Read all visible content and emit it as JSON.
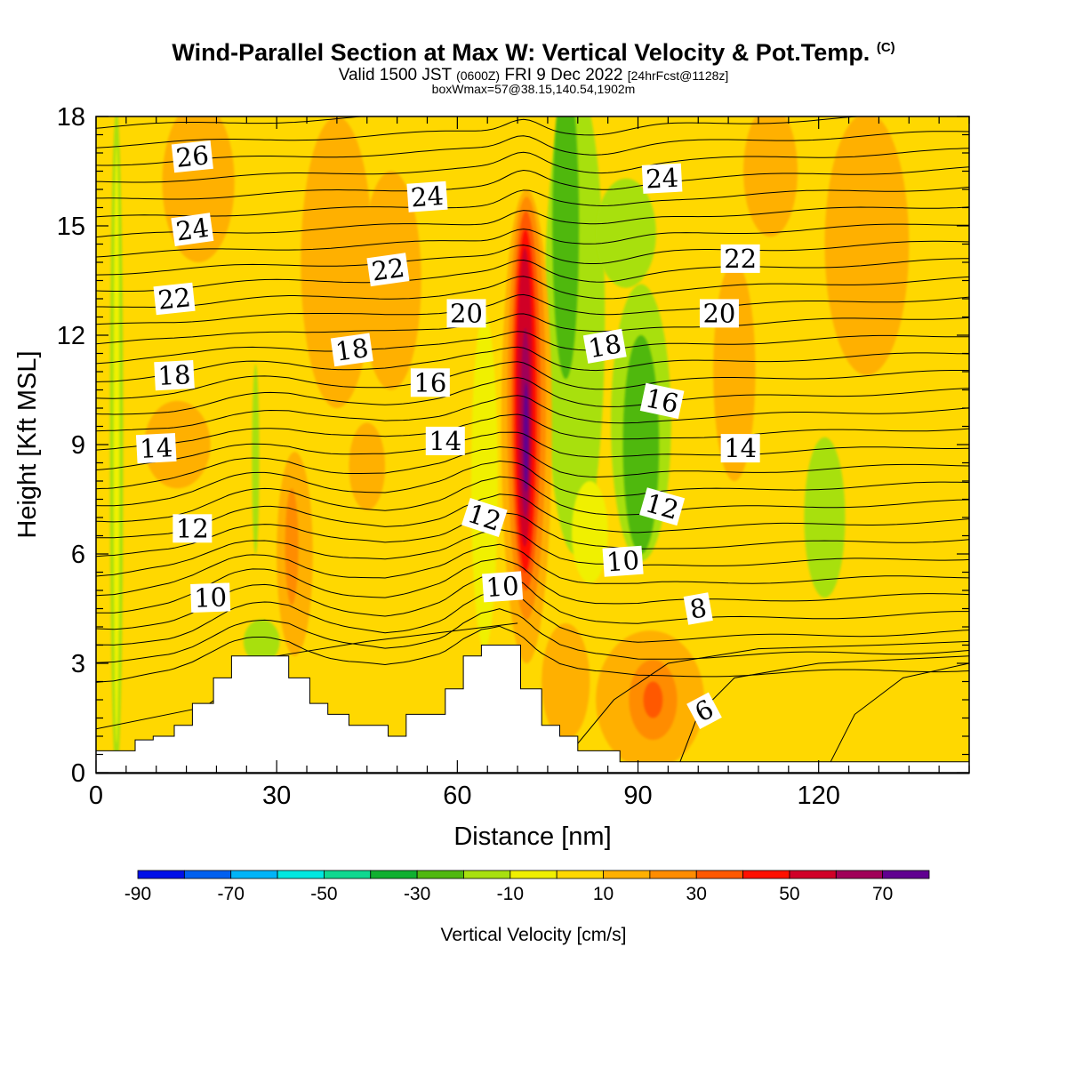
{
  "header": {
    "title": "Wind-Parallel Section at Max W: Vertical Velocity & Pot.Temp.",
    "copyright": "(C)",
    "valid_main": "Valid 1500 JST",
    "valid_zulu": "(0600Z)",
    "valid_date": "FRI 9 Dec 2022",
    "forecast": "[24hrFcst@1128z]",
    "box_info": "boxWmax=57@38.15,140.54,1902m"
  },
  "chart_data": {
    "type": "heatmap",
    "xlabel": "Distance [nm]",
    "ylabel": "Height [Kft MSL]",
    "xlim": [
      0,
      145
    ],
    "ylim": [
      0,
      18
    ],
    "x_ticks": [
      0,
      30,
      60,
      90,
      120
    ],
    "y_ticks": [
      0,
      3,
      6,
      9,
      12,
      15,
      18
    ],
    "colorbar": {
      "label": "Vertical Velocity [cm/s]",
      "ticks": [
        -90,
        -70,
        -50,
        -30,
        -10,
        10,
        30,
        50,
        70
      ],
      "min": -90,
      "max": 80,
      "colors": [
        "#0010e8",
        "#0060f0",
        "#00b4f8",
        "#00e8e0",
        "#10d890",
        "#10b030",
        "#50b810",
        "#a8e010",
        "#f0f000",
        "#ffd800",
        "#ffb000",
        "#ff8c00",
        "#ff5800",
        "#ff1000",
        "#d00028",
        "#a00058",
        "#600090"
      ]
    },
    "terrain": [
      [
        0,
        0.6
      ],
      [
        6.5,
        0.6
      ],
      [
        6.5,
        0.9
      ],
      [
        9.5,
        0.9
      ],
      [
        9.5,
        1.0
      ],
      [
        13,
        1.0
      ],
      [
        13,
        1.3
      ],
      [
        16,
        1.3
      ],
      [
        16,
        1.9
      ],
      [
        19.5,
        1.9
      ],
      [
        19.5,
        2.6
      ],
      [
        22.5,
        2.6
      ],
      [
        22.5,
        3.2
      ],
      [
        32,
        3.2
      ],
      [
        32,
        2.6
      ],
      [
        35.5,
        2.6
      ],
      [
        35.5,
        1.9
      ],
      [
        38.5,
        1.9
      ],
      [
        38.5,
        1.6
      ],
      [
        42,
        1.6
      ],
      [
        42,
        1.3
      ],
      [
        48.5,
        1.3
      ],
      [
        48.5,
        1.0
      ],
      [
        51.5,
        1.0
      ],
      [
        51.5,
        1.6
      ],
      [
        58,
        1.6
      ],
      [
        58,
        2.3
      ],
      [
        61,
        2.3
      ],
      [
        61,
        3.2
      ],
      [
        64,
        3.2
      ],
      [
        64,
        3.5
      ],
      [
        70.5,
        3.5
      ],
      [
        70.5,
        2.3
      ],
      [
        74,
        2.3
      ],
      [
        74,
        1.3
      ],
      [
        77,
        1.3
      ],
      [
        77,
        1.0
      ],
      [
        80,
        1.0
      ],
      [
        80,
        0.6
      ],
      [
        87,
        0.6
      ],
      [
        87,
        0.3
      ],
      [
        145,
        0.3
      ]
    ],
    "field_patches": [
      {
        "value": -20,
        "x": 3.4,
        "y": 9.0,
        "rx": 1.1,
        "ry": 9.2
      },
      {
        "value": -10,
        "x": 3.4,
        "y": 9.0,
        "rx": 0.5,
        "ry": 8.2
      },
      {
        "value": -15,
        "x": 26.5,
        "y": 8.6,
        "rx": 0.6,
        "ry": 2.6
      },
      {
        "value": -15,
        "x": 27.5,
        "y": 3.6,
        "rx": 3.0,
        "ry": 0.6
      },
      {
        "value": -10,
        "x": 64.5,
        "y": 8.0,
        "rx": 2.2,
        "ry": 4.6
      },
      {
        "value": -20,
        "x": 79.5,
        "y": 12.5,
        "rx": 5.0,
        "ry": 6.5
      },
      {
        "value": -30,
        "x": 78.0,
        "y": 15.0,
        "rx": 2.2,
        "ry": 4.2
      },
      {
        "value": -15,
        "x": 88.0,
        "y": 14.8,
        "rx": 5.0,
        "ry": 1.5
      },
      {
        "value": -20,
        "x": 90.5,
        "y": 9.6,
        "rx": 5.0,
        "ry": 3.8
      },
      {
        "value": -30,
        "x": 90.5,
        "y": 9.0,
        "rx": 3.0,
        "ry": 3.0
      },
      {
        "value": -10,
        "x": 82.0,
        "y": 6.6,
        "rx": 3.0,
        "ry": 1.4
      },
      {
        "value": -20,
        "x": 121.0,
        "y": 7.0,
        "rx": 3.4,
        "ry": 2.2
      },
      {
        "value": 10,
        "x": 17.0,
        "y": 16.2,
        "rx": 6.0,
        "ry": 2.2
      },
      {
        "value": 10,
        "x": 40.0,
        "y": 14.0,
        "rx": 6.0,
        "ry": 4.0
      },
      {
        "value": 10,
        "x": 49.0,
        "y": 13.5,
        "rx": 5.0,
        "ry": 3.0
      },
      {
        "value": 10,
        "x": 13.5,
        "y": 9.0,
        "rx": 5.5,
        "ry": 1.2
      },
      {
        "value": 10,
        "x": 33.0,
        "y": 6.0,
        "rx": 3.0,
        "ry": 2.8
      },
      {
        "value": 20,
        "x": 32.5,
        "y": 6.2,
        "rx": 1.1,
        "ry": 1.6
      },
      {
        "value": 10,
        "x": 45.0,
        "y": 8.4,
        "rx": 3.0,
        "ry": 1.2
      },
      {
        "value": 10,
        "x": 92.0,
        "y": 2.0,
        "rx": 9.0,
        "ry": 1.9
      },
      {
        "value": 20,
        "x": 92.5,
        "y": 2.0,
        "rx": 4.0,
        "ry": 1.1
      },
      {
        "value": 30,
        "x": 92.5,
        "y": 2.0,
        "rx": 1.6,
        "ry": 0.5
      },
      {
        "value": 10,
        "x": 128.0,
        "y": 14.5,
        "rx": 7.0,
        "ry": 3.6
      },
      {
        "value": 10,
        "x": 112.0,
        "y": 16.5,
        "rx": 4.5,
        "ry": 1.8
      },
      {
        "value": 10,
        "x": 106.0,
        "y": 11.0,
        "rx": 3.5,
        "ry": 3.0
      },
      {
        "value": 10,
        "x": 78.0,
        "y": 2.5,
        "rx": 4.0,
        "ry": 1.6
      },
      {
        "value": 10,
        "x": 71.5,
        "y": 9.5,
        "rx": 4.2,
        "ry": 6.5
      },
      {
        "value": 20,
        "x": 71.5,
        "y": 10.0,
        "rx": 3.2,
        "ry": 5.8
      },
      {
        "value": 30,
        "x": 71.4,
        "y": 10.2,
        "rx": 2.4,
        "ry": 5.2
      },
      {
        "value": 40,
        "x": 71.3,
        "y": 10.2,
        "rx": 1.8,
        "ry": 4.7
      },
      {
        "value": 50,
        "x": 71.2,
        "y": 10.3,
        "rx": 1.3,
        "ry": 4.1
      },
      {
        "value": 60,
        "x": 71.3,
        "y": 9.6,
        "rx": 0.8,
        "ry": 2.6
      },
      {
        "value": 70,
        "x": 71.4,
        "y": 9.2,
        "rx": 0.4,
        "ry": 1.5
      }
    ],
    "theta_labels": [
      {
        "text": "26",
        "x": 16,
        "y": 16.9,
        "rot": -6
      },
      {
        "text": "24",
        "x": 16,
        "y": 14.9,
        "rot": -8
      },
      {
        "text": "22",
        "x": 13,
        "y": 13.0,
        "rot": -6
      },
      {
        "text": "18",
        "x": 13,
        "y": 10.9,
        "rot": -3
      },
      {
        "text": "14",
        "x": 10,
        "y": 8.9,
        "rot": -3
      },
      {
        "text": "12",
        "x": 16,
        "y": 6.7,
        "rot": 0
      },
      {
        "text": "10",
        "x": 19,
        "y": 4.8,
        "rot": -2
      },
      {
        "text": "24",
        "x": 55,
        "y": 15.8,
        "rot": -4
      },
      {
        "text": "22",
        "x": 48.5,
        "y": 13.8,
        "rot": -8
      },
      {
        "text": "20",
        "x": 61.5,
        "y": 12.6,
        "rot": 0
      },
      {
        "text": "18",
        "x": 42.5,
        "y": 11.6,
        "rot": -8
      },
      {
        "text": "16",
        "x": 55.5,
        "y": 10.7,
        "rot": 0
      },
      {
        "text": "14",
        "x": 58,
        "y": 9.1,
        "rot": 0
      },
      {
        "text": "12",
        "x": 64.5,
        "y": 7.0,
        "rot": 18
      },
      {
        "text": "10",
        "x": 67.5,
        "y": 5.1,
        "rot": -4
      },
      {
        "text": "24",
        "x": 94,
        "y": 16.3,
        "rot": -3
      },
      {
        "text": "18",
        "x": 84.5,
        "y": 11.7,
        "rot": -10
      },
      {
        "text": "16",
        "x": 94,
        "y": 10.2,
        "rot": 12
      },
      {
        "text": "12",
        "x": 94,
        "y": 7.3,
        "rot": 16
      },
      {
        "text": "10",
        "x": 87.5,
        "y": 5.8,
        "rot": -4
      },
      {
        "text": "8",
        "x": 100,
        "y": 4.5,
        "rot": -10
      },
      {
        "text": "6",
        "x": 101,
        "y": 1.7,
        "rot": -28
      },
      {
        "text": "22",
        "x": 107,
        "y": 14.1,
        "rot": 0
      },
      {
        "text": "20",
        "x": 103.5,
        "y": 12.6,
        "rot": 0
      },
      {
        "text": "14",
        "x": 107,
        "y": 8.9,
        "rot": 0
      }
    ]
  }
}
